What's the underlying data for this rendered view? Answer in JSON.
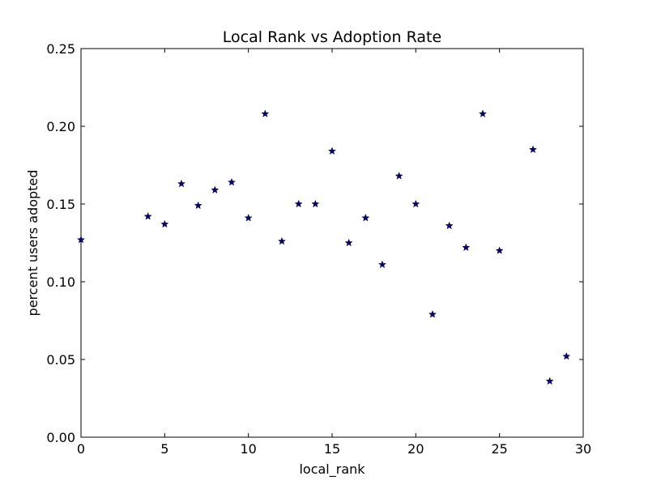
{
  "chart_data": {
    "type": "scatter",
    "title": "Local Rank vs Adoption Rate",
    "xlabel": "local_rank",
    "ylabel": "percent users adopted",
    "xlim": [
      0,
      30
    ],
    "ylim": [
      0,
      0.25
    ],
    "x_ticks": [
      "0",
      "5",
      "10",
      "15",
      "20",
      "25",
      "30"
    ],
    "y_ticks": [
      "0.00",
      "0.05",
      "0.10",
      "0.15",
      "0.20",
      "0.25"
    ],
    "grid": false,
    "marker": "star",
    "marker_color": "#00008b",
    "x": [
      0,
      4,
      5,
      6,
      7,
      8,
      9,
      10,
      11,
      12,
      13,
      14,
      15,
      16,
      17,
      18,
      19,
      20,
      21,
      22,
      23,
      24,
      25,
      27,
      28,
      29
    ],
    "y": [
      0.127,
      0.142,
      0.137,
      0.163,
      0.149,
      0.159,
      0.164,
      0.141,
      0.208,
      0.126,
      0.15,
      0.15,
      0.184,
      0.125,
      0.141,
      0.111,
      0.168,
      0.15,
      0.079,
      0.136,
      0.122,
      0.208,
      0.12,
      0.185,
      0.036,
      0.052
    ]
  }
}
